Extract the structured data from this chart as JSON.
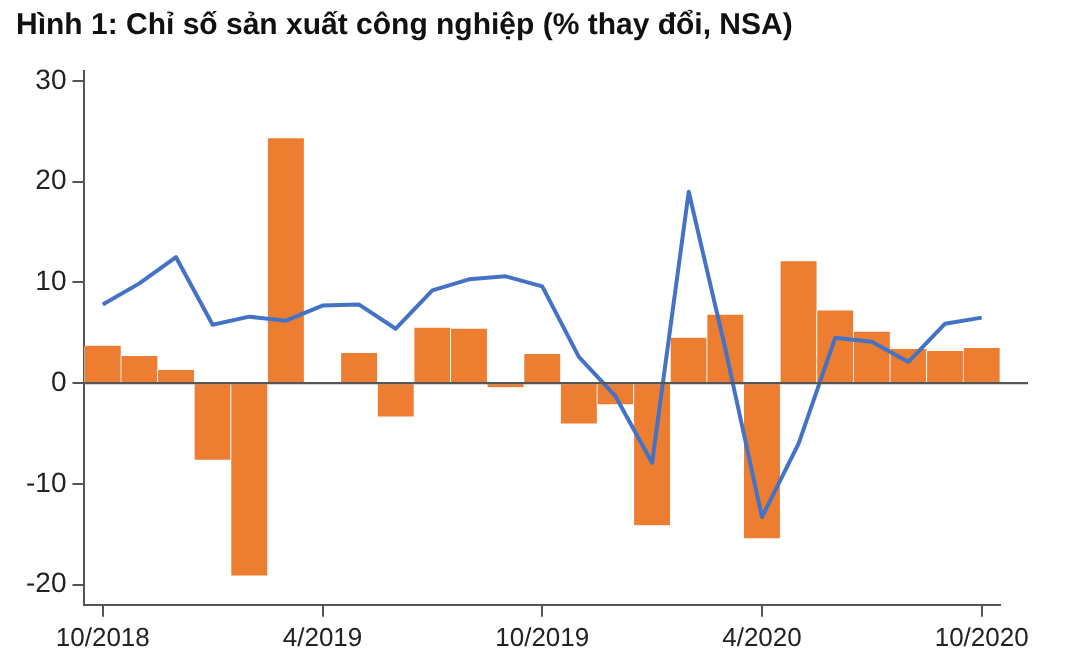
{
  "chart_data": {
    "type": "bar",
    "title": "Hình 1: Chỉ số sản xuất công nghiệp (% thay đổi, NSA)",
    "categories": [
      "10/2018",
      null,
      null,
      null,
      null,
      null,
      "4/2019",
      null,
      null,
      null,
      null,
      null,
      "10/2019",
      null,
      null,
      null,
      null,
      null,
      "4/2020",
      null,
      null,
      null,
      null,
      null,
      "10/2020"
    ],
    "series": [
      {
        "color": "#ed7d31",
        "values": [
          3.7,
          2.7,
          1.3,
          -7.6,
          -19.1,
          24.3,
          0,
          3.0,
          -3.3,
          5.5,
          5.4,
          -0.4,
          2.9,
          -4.0,
          -2.1,
          -14.1,
          4.5,
          6.8,
          -15.4,
          12.1,
          7.2,
          5.1,
          3.4,
          3.2,
          3.5
        ]
      },
      {
        "type": "line",
        "color": "#4472c4",
        "values": [
          7.8,
          9.9,
          12.5,
          5.8,
          6.6,
          6.2,
          7.7,
          7.8,
          5.4,
          9.2,
          10.3,
          10.6,
          9.6,
          2.6,
          -1.3,
          -7.9,
          19.0,
          3.4,
          -13.3,
          -6.0,
          4.5,
          4.1,
          2.1,
          5.9,
          6.5
        ]
      }
    ],
    "ylim": [
      -22,
      31
    ],
    "yticks": [
      -20,
      -10,
      0,
      10,
      20,
      30
    ],
    "ref_lines": [
      {
        "axis": "y",
        "value": 0,
        "color": "#555555"
      }
    ],
    "grid": false,
    "legend": false,
    "marker": "none",
    "line_style": "solid"
  }
}
